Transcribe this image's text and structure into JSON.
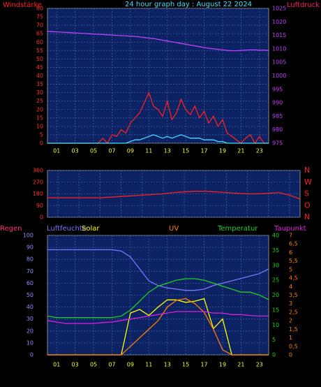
{
  "chart_data": [
    {
      "type": "line",
      "title": "24 hour graph day : August 22 2024",
      "ylabel": "Windstärke",
      "y2label": "Luftdruck",
      "x": [
        0,
        0.5,
        1,
        1.5,
        2,
        2.5,
        3,
        3.5,
        4,
        4.5,
        5,
        5.5,
        6,
        6.5,
        7,
        7.5,
        8,
        8.5,
        9,
        9.5,
        10,
        10.5,
        11,
        11.5,
        12,
        12.5,
        13,
        13.5,
        14,
        14.5,
        15,
        15.5,
        16,
        16.5,
        17,
        17.5,
        18,
        18.5,
        19,
        19.5,
        20,
        20.5,
        21,
        21.5,
        22,
        22.5,
        23,
        23.5,
        24
      ],
      "xlim": [
        0,
        24
      ],
      "xticks": [
        {
          "value": 1,
          "label": "01"
        },
        {
          "value": 3,
          "label": "03"
        },
        {
          "value": 5,
          "label": "05"
        },
        {
          "value": 7,
          "label": "07"
        },
        {
          "value": 9,
          "label": "09"
        },
        {
          "value": 11,
          "label": "11"
        },
        {
          "value": 13,
          "label": "13"
        },
        {
          "value": 15,
          "label": "15"
        },
        {
          "value": 17,
          "label": "17"
        },
        {
          "value": 19,
          "label": "19"
        },
        {
          "value": 21,
          "label": "21"
        },
        {
          "value": 23,
          "label": "23"
        }
      ],
      "ylim": [
        0,
        80
      ],
      "yticks": [
        0,
        5,
        10,
        15,
        20,
        25,
        30,
        35,
        40,
        45,
        50,
        55,
        60,
        65,
        70,
        75,
        80
      ],
      "y2lim": [
        975,
        1025
      ],
      "y2ticks": [
        975,
        980,
        985,
        990,
        995,
        1000,
        1005,
        1010,
        1015,
        1020,
        1025
      ],
      "grid": true,
      "series": [
        {
          "color": "#ff2020",
          "values": [
            0,
            0,
            0,
            0,
            0,
            0,
            0,
            0,
            0,
            0,
            0,
            0,
            3,
            0,
            5,
            4,
            8,
            6,
            12,
            15,
            18,
            24,
            30,
            22,
            20,
            16,
            25,
            14,
            18,
            26,
            20,
            17,
            22,
            15,
            19,
            12,
            16,
            10,
            14,
            6,
            4,
            2,
            0,
            3,
            5,
            0,
            4,
            0,
            0
          ]
        },
        {
          "color": "#40e0ff",
          "values": [
            0,
            0,
            0,
            0,
            0,
            0,
            0,
            0,
            0,
            0,
            0,
            0,
            0,
            0,
            0,
            0,
            0,
            0,
            1,
            2,
            2,
            3,
            4,
            5,
            4,
            3,
            4,
            3,
            4,
            5,
            4,
            3,
            3,
            3,
            2,
            2,
            2,
            1,
            1,
            0,
            0,
            0,
            0,
            0,
            0,
            0,
            0,
            0,
            0
          ]
        },
        {
          "color": "#c040ff",
          "axis": "y2",
          "values": [
            1016.5,
            1016.4,
            1016.3,
            1016.2,
            1016.1,
            1016,
            1015.9,
            1015.8,
            1015.7,
            1015.6,
            1015.5,
            1015.4,
            1015.3,
            1015.2,
            1015.1,
            1015,
            1014.9,
            1014.8,
            1014.7,
            1014.6,
            1014.4,
            1014.2,
            1014,
            1013.8,
            1013.5,
            1013.2,
            1012.9,
            1012.6,
            1012.3,
            1012,
            1011.7,
            1011.4,
            1011.1,
            1010.8,
            1010.5,
            1010.2,
            1010,
            1009.8,
            1009.6,
            1009.4,
            1009.3,
            1009.3,
            1009.4,
            1009.5,
            1009.6,
            1009.6,
            1009.5,
            1009.5,
            1009.4
          ]
        }
      ]
    },
    {
      "type": "line",
      "x": [
        0,
        1,
        2,
        3,
        4,
        5,
        6,
        7,
        8,
        9,
        10,
        11,
        12,
        13,
        14,
        15,
        16,
        17,
        18,
        19,
        20,
        21,
        22,
        23,
        24
      ],
      "xlim": [
        0,
        24
      ],
      "xticks": [
        1,
        3,
        5,
        7,
        9,
        11,
        13,
        15,
        17,
        19,
        21,
        23
      ],
      "ylim": [
        0,
        360
      ],
      "yticks": [
        0,
        90,
        180,
        270,
        360
      ],
      "y2lim": [
        0,
        360
      ],
      "y2ticks": [
        {
          "value": 0,
          "label": "N"
        },
        {
          "value": 90,
          "label": "O"
        },
        {
          "value": 180,
          "label": "S"
        },
        {
          "value": 270,
          "label": "W"
        },
        {
          "value": 360,
          "label": "N"
        }
      ],
      "grid": true,
      "series": [
        {
          "color": "#ff2020",
          "values": [
            150,
            150,
            150,
            150,
            150,
            150,
            155,
            160,
            165,
            170,
            175,
            180,
            190,
            195,
            200,
            200,
            195,
            190,
            185,
            180,
            180,
            185,
            190,
            170,
            140
          ]
        }
      ]
    },
    {
      "type": "line",
      "annotations": [
        "Regen"
      ],
      "x": [
        0,
        1,
        2,
        3,
        4,
        5,
        6,
        7,
        8,
        9,
        10,
        11,
        12,
        13,
        14,
        15,
        16,
        17,
        18,
        19,
        20,
        21,
        22,
        23,
        24
      ],
      "xlim": [
        0,
        24
      ],
      "xticks": [
        {
          "value": 1,
          "label": "01"
        },
        {
          "value": 3,
          "label": "03"
        },
        {
          "value": 5,
          "label": "05"
        },
        {
          "value": 7,
          "label": "07"
        },
        {
          "value": 9,
          "label": "09"
        },
        {
          "value": 11,
          "label": "11"
        },
        {
          "value": 13,
          "label": "13"
        },
        {
          "value": 15,
          "label": "15"
        },
        {
          "value": 17,
          "label": "17"
        },
        {
          "value": 19,
          "label": "19"
        },
        {
          "value": 21,
          "label": "21"
        },
        {
          "value": 23,
          "label": "23"
        }
      ],
      "ylim": [
        0,
        100
      ],
      "yticks": [
        0,
        10,
        20,
        30,
        40,
        50,
        60,
        70,
        80,
        90,
        100
      ],
      "y2lim": [
        0,
        40
      ],
      "y2ticks": [
        0,
        5,
        10,
        15,
        20,
        25,
        30,
        35,
        40
      ],
      "y3lim": [
        0,
        7
      ],
      "y3ticks": [
        0,
        {
          "value": 0.5,
          "label": "0,5"
        },
        1,
        {
          "value": 1.5,
          "label": "1,5"
        },
        2,
        {
          "value": 2.5,
          "label": "2,5"
        },
        3,
        {
          "value": 3.5,
          "label": "3,5"
        },
        4,
        {
          "value": 4.5,
          "label": "4,5"
        },
        5,
        {
          "value": 5.5,
          "label": "5,5"
        },
        6,
        {
          "value": 6.5,
          "label": "6,5"
        },
        7
      ],
      "grid": true,
      "series": [
        {
          "name": "Luftfeuchte",
          "color": "#7878ff",
          "values": [
            88,
            88,
            88,
            88,
            88,
            88,
            88,
            88,
            87,
            82,
            72,
            62,
            58,
            56,
            55,
            54,
            54,
            55,
            58,
            60,
            62,
            64,
            66,
            68,
            72
          ]
        },
        {
          "name": "Solar",
          "color": "#ffff00",
          "values": [
            0,
            0,
            0,
            0,
            0,
            0,
            0,
            0,
            0,
            35,
            38,
            33,
            40,
            46,
            46,
            44,
            45,
            47,
            22,
            30,
            0,
            0,
            0,
            0,
            0
          ]
        },
        {
          "name": "UV",
          "color": "#ff8000",
          "axis": "y3",
          "values": [
            0,
            0,
            0,
            0,
            0,
            0,
            0,
            0,
            0,
            0.5,
            1,
            1.5,
            2,
            2.8,
            3.2,
            3.3,
            3,
            2.5,
            1.5,
            0.3,
            0,
            0,
            0,
            0,
            0
          ]
        },
        {
          "name": "Temperatur",
          "color": "#20d020",
          "axis": "y2",
          "values": [
            13,
            12.5,
            12.5,
            12.5,
            12.5,
            12.5,
            12.5,
            12.5,
            13,
            15,
            18,
            21,
            23,
            24,
            25,
            25.5,
            25.5,
            25,
            24,
            23,
            22,
            21,
            21,
            20,
            18.5
          ]
        },
        {
          "name": "Taupunkt",
          "color": "#e020e0",
          "axis": "y2",
          "values": [
            11.5,
            11,
            10.5,
            10.5,
            10.5,
            10.5,
            10.8,
            11,
            11.5,
            12,
            12.5,
            13,
            13.5,
            14,
            14.5,
            14.5,
            14.5,
            14.5,
            14,
            14,
            13.5,
            13.5,
            13.2,
            13,
            13
          ]
        }
      ]
    }
  ]
}
